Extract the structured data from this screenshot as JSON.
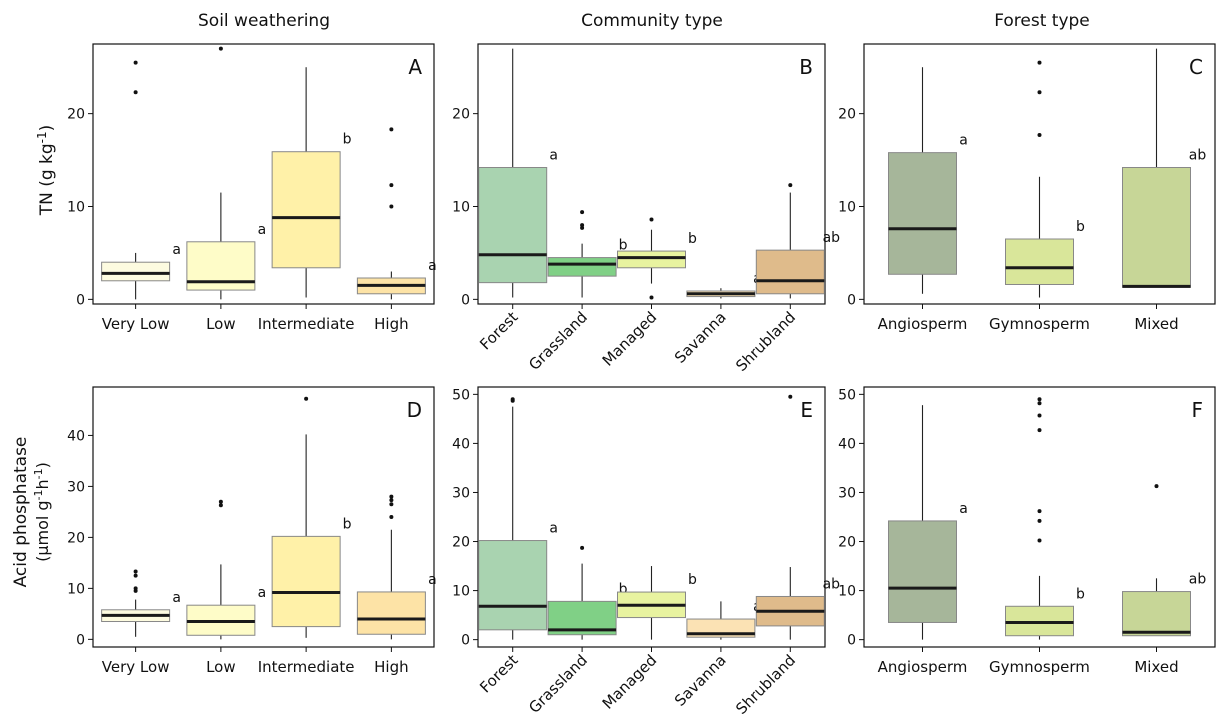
{
  "column_titles": [
    "Soil weathering",
    "Community type",
    "Forest type"
  ],
  "row_labels": {
    "top": {
      "main": "TN (g kg",
      "sup": "-1",
      "tail": ")"
    },
    "bottom": {
      "line1": "Acid phosphatase",
      "line2_a": "(µmol g",
      "sup1": "-1",
      "mid": "h",
      "sup2": "-1",
      "tail": ")"
    }
  },
  "chart_data": [
    {
      "type": "boxplot",
      "panel": "A",
      "column": "Soil weathering",
      "ylim": [
        -0.5,
        27.5
      ],
      "yticks": [
        0,
        10,
        20
      ],
      "categories": [
        "Very Low",
        "Low",
        "Intermediate",
        "High"
      ],
      "boxes": [
        {
          "category": "Very Low",
          "whisker_low": 0,
          "q1": 2.0,
          "median": 2.8,
          "q3": 4.0,
          "whisker_high": 5.0,
          "outliers": [
            22.3,
            25.5
          ],
          "letter": "a",
          "color": "#fdfbe0"
        },
        {
          "category": "Low",
          "whisker_low": 0,
          "q1": 1.0,
          "median": 1.9,
          "q3": 6.2,
          "whisker_high": 11.5,
          "outliers": [
            27.0
          ],
          "letter": "a",
          "color": "#fefcc8"
        },
        {
          "category": "Intermediate",
          "whisker_low": 0.2,
          "q1": 3.4,
          "median": 8.8,
          "q3": 15.9,
          "whisker_high": 25.0,
          "outliers": [],
          "letter": "b",
          "color": "#fff1a8"
        },
        {
          "category": "High",
          "whisker_low": 0,
          "q1": 0.6,
          "median": 1.5,
          "q3": 2.3,
          "whisker_high": 3.0,
          "outliers": [
            10.0,
            12.3,
            18.3
          ],
          "letter": "a",
          "color": "#fde3a6"
        }
      ]
    },
    {
      "type": "boxplot",
      "panel": "B",
      "column": "Community type",
      "ylim": [
        -0.5,
        27.5
      ],
      "yticks": [
        0,
        10,
        20
      ],
      "categories": [
        "Forest",
        "Grassland",
        "Managed",
        "Savanna",
        "Shrubland"
      ],
      "boxes": [
        {
          "category": "Forest",
          "whisker_low": 0.2,
          "q1": 1.8,
          "median": 4.8,
          "q3": 14.2,
          "whisker_high": 27.0,
          "outliers": [],
          "letter": "a",
          "color": "#a9d3b0"
        },
        {
          "category": "Grassland",
          "whisker_low": 0.2,
          "q1": 2.5,
          "median": 3.8,
          "q3": 4.5,
          "whisker_high": 6.0,
          "outliers": [
            7.7,
            8.0,
            9.4
          ],
          "letter": "b",
          "color": "#80d086"
        },
        {
          "category": "Managed",
          "whisker_low": 1.7,
          "q1": 3.4,
          "median": 4.5,
          "q3": 5.2,
          "whisker_high": 7.5,
          "outliers": [
            0.2,
            8.6
          ],
          "letter": "b",
          "color": "#e8f3a0"
        },
        {
          "category": "Savanna",
          "whisker_low": 0.1,
          "q1": 0.3,
          "median": 0.6,
          "q3": 0.9,
          "whisker_high": 1.2,
          "outliers": [],
          "letter": "ab",
          "color": "#fbe2b4"
        },
        {
          "category": "Shrubland",
          "whisker_low": 0.1,
          "q1": 0.6,
          "median": 2.0,
          "q3": 5.3,
          "whisker_high": 11.5,
          "outliers": [
            12.3
          ],
          "letter": "ab",
          "color": "#dfbb8b"
        }
      ]
    },
    {
      "type": "boxplot",
      "panel": "C",
      "column": "Forest type",
      "ylim": [
        -0.5,
        27.5
      ],
      "yticks": [
        0,
        10,
        20
      ],
      "categories": [
        "Angiosperm",
        "Gymnosperm",
        "Mixed"
      ],
      "boxes": [
        {
          "category": "Angiosperm",
          "whisker_low": 0.6,
          "q1": 2.7,
          "median": 7.6,
          "q3": 15.8,
          "whisker_high": 25.0,
          "outliers": [],
          "letter": "a",
          "color": "#a6b69a"
        },
        {
          "category": "Gymnosperm",
          "whisker_low": 0.2,
          "q1": 1.6,
          "median": 3.4,
          "q3": 6.5,
          "whisker_high": 13.2,
          "outliers": [
            17.7,
            22.3,
            25.5
          ],
          "letter": "b",
          "color": "#d9e69a"
        },
        {
          "category": "Mixed",
          "whisker_low": 1.3,
          "q1": 1.3,
          "median": 1.4,
          "q3": 14.2,
          "whisker_high": 27.0,
          "outliers": [],
          "letter": "ab",
          "color": "#c7d697"
        }
      ]
    },
    {
      "type": "boxplot",
      "panel": "D",
      "column": "Soil weathering",
      "ylim": [
        -1.5,
        49.5
      ],
      "yticks": [
        0,
        10,
        20,
        30,
        40
      ],
      "categories": [
        "Very Low",
        "Low",
        "Intermediate",
        "High"
      ],
      "boxes": [
        {
          "category": "Very Low",
          "whisker_low": 0.5,
          "q1": 3.5,
          "median": 4.7,
          "q3": 5.8,
          "whisker_high": 7.8,
          "outliers": [
            9.5,
            10.0,
            12.5,
            13.3
          ],
          "letter": "a",
          "color": "#fdfbe0"
        },
        {
          "category": "Low",
          "whisker_low": 0,
          "q1": 0.8,
          "median": 3.5,
          "q3": 6.7,
          "whisker_high": 14.7,
          "outliers": [
            26.3,
            27.0
          ],
          "letter": "a",
          "color": "#fefcc8"
        },
        {
          "category": "Intermediate",
          "whisker_low": 0.3,
          "q1": 2.5,
          "median": 9.2,
          "q3": 20.2,
          "whisker_high": 40.2,
          "outliers": [
            47.2
          ],
          "letter": "b",
          "color": "#fff1a8"
        },
        {
          "category": "High",
          "whisker_low": 0,
          "q1": 1.0,
          "median": 4.0,
          "q3": 9.3,
          "whisker_high": 21.5,
          "outliers": [
            24.0,
            26.5,
            27.3,
            28.0
          ],
          "letter": "a",
          "color": "#fde3a6"
        }
      ]
    },
    {
      "type": "boxplot",
      "panel": "E",
      "column": "Community type",
      "ylim": [
        -1.5,
        51.5
      ],
      "yticks": [
        0,
        10,
        20,
        30,
        40,
        50
      ],
      "categories": [
        "Forest",
        "Grassland",
        "Managed",
        "Savanna",
        "Shrubland"
      ],
      "boxes": [
        {
          "category": "Forest",
          "whisker_low": 0,
          "q1": 2.0,
          "median": 6.8,
          "q3": 20.2,
          "whisker_high": 47.5,
          "outliers": [
            48.7,
            49.0
          ],
          "letter": "a",
          "color": "#a9d3b0"
        },
        {
          "category": "Grassland",
          "whisker_low": 0,
          "q1": 1.0,
          "median": 2.0,
          "q3": 7.8,
          "whisker_high": 15.5,
          "outliers": [
            18.7
          ],
          "letter": "b",
          "color": "#80d086"
        },
        {
          "category": "Managed",
          "whisker_low": 0,
          "q1": 4.5,
          "median": 7.0,
          "q3": 9.7,
          "whisker_high": 15.0,
          "outliers": [],
          "letter": "b",
          "color": "#e8f3a0"
        },
        {
          "category": "Savanna",
          "whisker_low": 0,
          "q1": 0.5,
          "median": 1.2,
          "q3": 4.2,
          "whisker_high": 7.8,
          "outliers": [],
          "letter": "ab",
          "color": "#fbe2b4"
        },
        {
          "category": "Shrubland",
          "whisker_low": 0,
          "q1": 2.8,
          "median": 5.8,
          "q3": 8.8,
          "whisker_high": 14.8,
          "outliers": [
            49.5
          ],
          "letter": "ab",
          "color": "#dfbb8b"
        }
      ]
    },
    {
      "type": "boxplot",
      "panel": "F",
      "column": "Forest type",
      "ylim": [
        -1.5,
        51.5
      ],
      "yticks": [
        0,
        10,
        20,
        30,
        40,
        50
      ],
      "categories": [
        "Angiosperm",
        "Gymnosperm",
        "Mixed"
      ],
      "boxes": [
        {
          "category": "Angiosperm",
          "whisker_low": 0,
          "q1": 3.5,
          "median": 10.5,
          "q3": 24.2,
          "whisker_high": 47.8,
          "outliers": [],
          "letter": "a",
          "color": "#a6b69a"
        },
        {
          "category": "Gymnosperm",
          "whisker_low": 0,
          "q1": 0.8,
          "median": 3.5,
          "q3": 6.8,
          "whisker_high": 13.0,
          "outliers": [
            20.2,
            24.2,
            26.2,
            42.7,
            45.7,
            48.2,
            49.0
          ],
          "letter": "b",
          "color": "#d9e69a"
        },
        {
          "category": "Mixed",
          "whisker_low": 0.8,
          "q1": 0.8,
          "median": 1.5,
          "q3": 9.8,
          "whisker_high": 12.5,
          "outliers": [
            31.3
          ],
          "letter": "ab",
          "color": "#c7d697"
        }
      ]
    }
  ]
}
